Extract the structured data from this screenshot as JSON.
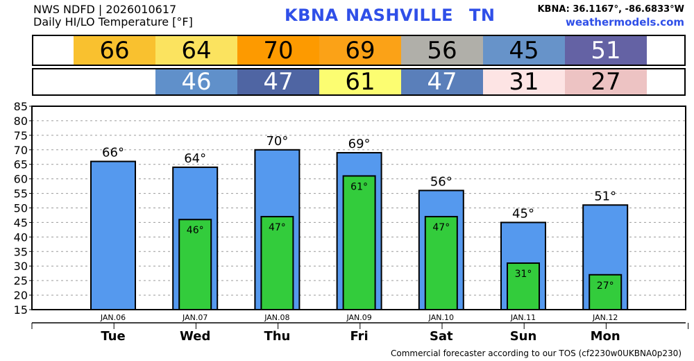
{
  "header": {
    "line1": "NWS NDFD | 2026010617",
    "line2": "Daily HI/LO Temperature [°F]",
    "station": "KBNA",
    "city": "NASHVILLE",
    "state": "TN",
    "coords": "KBNA: 36.1167°, -86.6833°W",
    "site": "weathermodels.com"
  },
  "footer": "Commercial forecaster according to our TOS (cf2230w0UKBNA0p230)",
  "strip_hi": {
    "values": [
      "66",
      "64",
      "70",
      "69",
      "56",
      "45",
      "51"
    ],
    "colors": [
      "#f9c12f",
      "#fbe35f",
      "#fd9a00",
      "#fba217",
      "#b0afa9",
      "#6793c9",
      "#6462a4"
    ],
    "text_colors": [
      "#000000",
      "#000000",
      "#000000",
      "#000000",
      "#000000",
      "#000000",
      "#ffffff"
    ]
  },
  "strip_lo": {
    "values": [
      "",
      "46",
      "47",
      "61",
      "47",
      "31",
      "27"
    ],
    "colors": [
      "#ffffff",
      "#6090ca",
      "#4f65a3",
      "#fcfd71",
      "#5a7fba",
      "#fde4e4",
      "#edc3c3"
    ],
    "text_colors": [
      "#000000",
      "#ffffff",
      "#ffffff",
      "#000000",
      "#ffffff",
      "#000000",
      "#000000"
    ]
  },
  "chart_data": {
    "type": "bar",
    "categories": [
      "Tue",
      "Wed",
      "Thu",
      "Fri",
      "Sat",
      "Sun",
      "Mon"
    ],
    "dates": [
      "JAN.06",
      "JAN.07",
      "JAN.08",
      "JAN.09",
      "JAN.10",
      "JAN.11",
      "JAN.12"
    ],
    "series": [
      {
        "name": "",
        "values": [
          66,
          64,
          70,
          69,
          56,
          45,
          51
        ],
        "color": "#5599ee"
      },
      {
        "name": "",
        "values": [
          null,
          46,
          47,
          61,
          47,
          31,
          27
        ],
        "color": "#33cc3c"
      }
    ],
    "hi_labels": [
      "66°",
      "64°",
      "70°",
      "69°",
      "56°",
      "45°",
      "51°"
    ],
    "lo_labels": [
      "",
      "46°",
      "47°",
      "61°",
      "47°",
      "31°",
      "27°"
    ],
    "ylim": [
      15,
      85
    ],
    "yticks": [
      15,
      20,
      25,
      30,
      35,
      40,
      45,
      50,
      55,
      60,
      65,
      70,
      75,
      80,
      85
    ],
    "grid": true,
    "xlabel": "",
    "ylabel": "",
    "title": ""
  }
}
